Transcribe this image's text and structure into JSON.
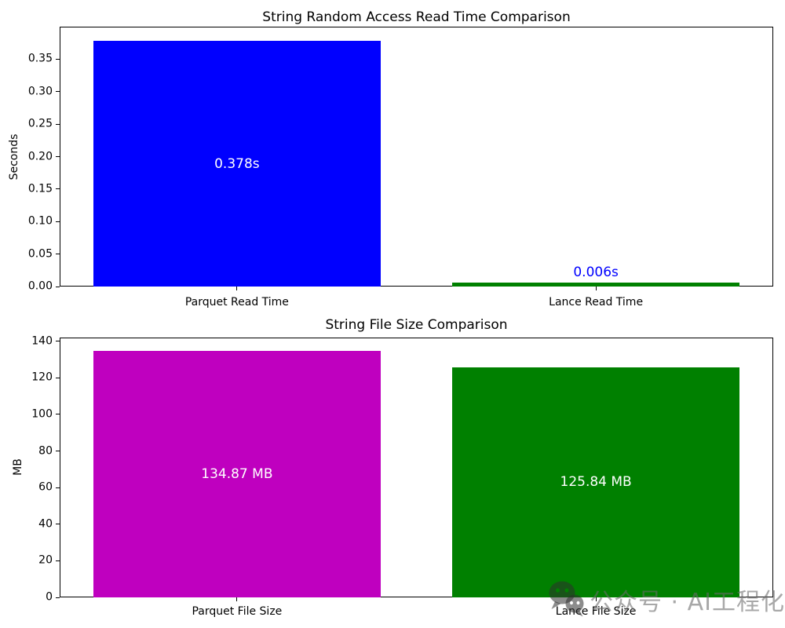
{
  "page": {
    "background": "#ffffff"
  },
  "watermark": {
    "icon": "wechat-icon",
    "text": "公众号 · AI工程化"
  },
  "chart_data": [
    {
      "type": "bar",
      "title": "String Random Access Read Time Comparison",
      "xlabel": "",
      "ylabel": "Seconds",
      "categories": [
        "Parquet Read Time",
        "Lance Read Time"
      ],
      "values": [
        0.378,
        0.006
      ],
      "bar_colors": [
        "#0000ff",
        "#008000"
      ],
      "bar_labels": [
        {
          "text": "0.378s",
          "color": "#ffffff",
          "position": "inside-center"
        },
        {
          "text": "0.006s",
          "color": "#0000ff",
          "position": "above"
        }
      ],
      "ylim": [
        0,
        0.4
      ],
      "yticks": [
        0.0,
        0.05,
        0.1,
        0.15,
        0.2,
        0.25,
        0.3,
        0.35
      ],
      "ytick_labels": [
        "0.00",
        "0.05",
        "0.10",
        "0.15",
        "0.20",
        "0.25",
        "0.30",
        "0.35"
      ],
      "grid": false,
      "legend": "none"
    },
    {
      "type": "bar",
      "title": "String File Size Comparison",
      "xlabel": "",
      "ylabel": "MB",
      "categories": [
        "Parquet File Size",
        "Lance File Size"
      ],
      "values": [
        134.87,
        125.84
      ],
      "bar_colors": [
        "#bf00bf",
        "#008000"
      ],
      "bar_labels": [
        {
          "text": "134.87 MB",
          "color": "#ffffff",
          "position": "inside-center"
        },
        {
          "text": "125.84 MB",
          "color": "#ffffff",
          "position": "inside-center"
        }
      ],
      "ylim": [
        0,
        142
      ],
      "yticks": [
        0,
        20,
        40,
        60,
        80,
        100,
        120,
        140
      ],
      "ytick_labels": [
        "0",
        "20",
        "40",
        "60",
        "80",
        "100",
        "120",
        "140"
      ],
      "grid": false,
      "legend": "none"
    }
  ]
}
